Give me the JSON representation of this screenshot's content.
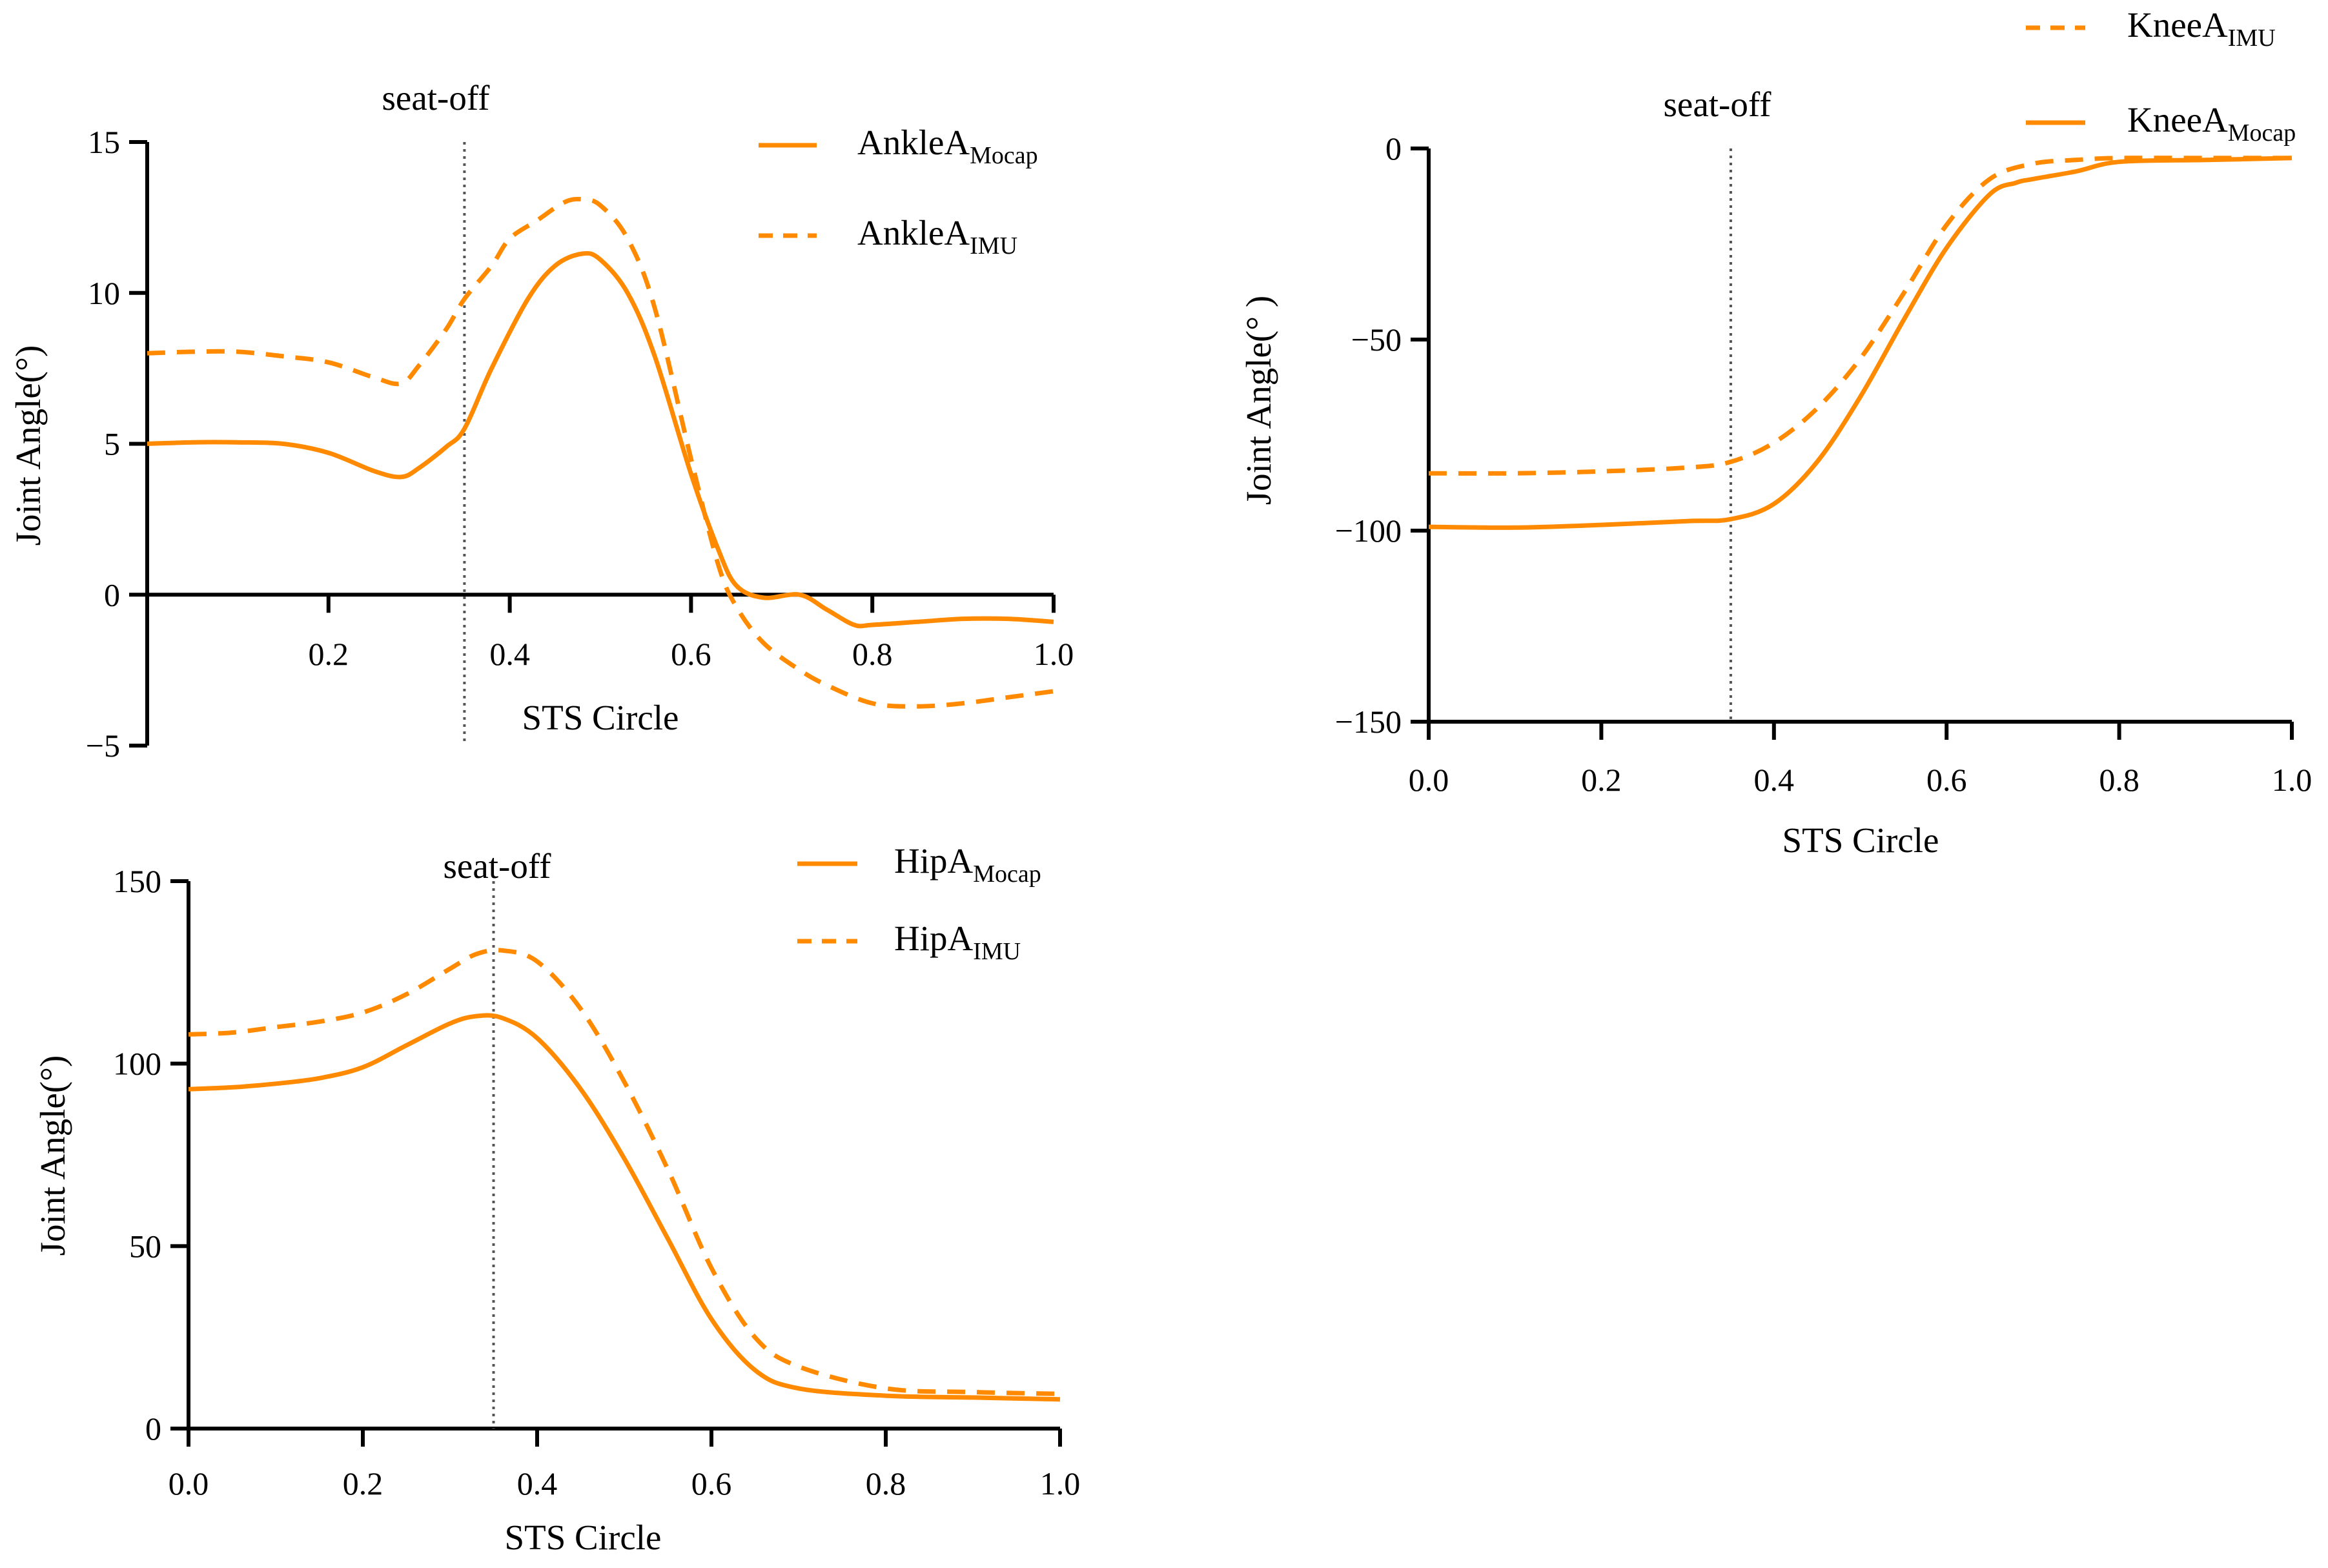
{
  "colors": {
    "series": "#ff8a00",
    "axis": "#000000",
    "marker": "#555555"
  },
  "chart_data": [
    {
      "id": "ankle",
      "type": "line",
      "xlabel": "STS Circle",
      "ylabel": "Joint Angle(°)",
      "xlim": [
        0,
        1.0
      ],
      "ylim": [
        -5,
        15
      ],
      "xticks": [
        0.2,
        0.4,
        0.6,
        0.8,
        1.0
      ],
      "xtick_labels": [
        "0.2",
        "0.4",
        "0.6",
        "0.8",
        "1.0"
      ],
      "yticks": [
        -5,
        0,
        5,
        10,
        15
      ],
      "ytick_labels": [
        "−5",
        "0",
        "5",
        "10",
        "15"
      ],
      "xaxis_at_y": 0,
      "marker": {
        "x": 0.35,
        "label": "seat-off"
      },
      "series": [
        {
          "name": "AnkleA_Mocap",
          "label_main": "AnkleA",
          "label_sub": "Mocap",
          "style": "solid",
          "x": [
            0,
            0.05,
            0.1,
            0.15,
            0.2,
            0.25,
            0.28,
            0.3,
            0.33,
            0.35,
            0.38,
            0.42,
            0.45,
            0.48,
            0.5,
            0.53,
            0.56,
            0.6,
            0.63,
            0.65,
            0.68,
            0.72,
            0.75,
            0.78,
            0.8,
            0.85,
            0.9,
            0.95,
            1.0
          ],
          "values": [
            5.0,
            5.05,
            5.05,
            5.0,
            4.7,
            4.1,
            3.9,
            4.2,
            4.9,
            5.5,
            7.5,
            9.8,
            10.9,
            11.3,
            11.1,
            10.0,
            7.9,
            4.0,
            1.5,
            0.3,
            -0.1,
            0.0,
            -0.5,
            -1.0,
            -1.0,
            -0.9,
            -0.8,
            -0.8,
            -0.9
          ]
        },
        {
          "name": "AnkleA_IMU",
          "label_main": "AnkleA",
          "label_sub": "IMU",
          "style": "dashed",
          "x": [
            0,
            0.05,
            0.1,
            0.15,
            0.2,
            0.25,
            0.28,
            0.3,
            0.33,
            0.35,
            0.38,
            0.4,
            0.43,
            0.46,
            0.48,
            0.5,
            0.53,
            0.56,
            0.6,
            0.63,
            0.65,
            0.68,
            0.72,
            0.75,
            0.8,
            0.85,
            0.9,
            0.95,
            1.0
          ],
          "values": [
            8.0,
            8.05,
            8.05,
            7.9,
            7.7,
            7.2,
            7.0,
            7.6,
            8.8,
            9.8,
            10.9,
            11.8,
            12.4,
            13.0,
            13.1,
            12.9,
            11.8,
            9.5,
            4.5,
            1.0,
            -0.4,
            -1.6,
            -2.5,
            -3.0,
            -3.6,
            -3.7,
            -3.6,
            -3.4,
            -3.2
          ]
        }
      ]
    },
    {
      "id": "knee",
      "type": "line",
      "xlabel": "STS Circle",
      "ylabel": "Joint Angle(° )",
      "xlim": [
        0,
        1.0
      ],
      "ylim": [
        -150,
        0
      ],
      "xticks": [
        0.0,
        0.2,
        0.4,
        0.6,
        0.8,
        1.0
      ],
      "xtick_labels": [
        "0.0",
        "0.2",
        "0.4",
        "0.6",
        "0.8",
        "1.0"
      ],
      "yticks": [
        -150,
        -100,
        -50,
        0
      ],
      "ytick_labels": [
        "−150",
        "−100",
        "−50",
        "0"
      ],
      "xaxis_at_y": -150,
      "marker": {
        "x": 0.35,
        "label": "seat-off"
      },
      "series": [
        {
          "name": "KneeA_IMU",
          "label_main": "KneeA",
          "label_sub": "IMU",
          "style": "dashed",
          "x": [
            0,
            0.1,
            0.2,
            0.3,
            0.35,
            0.4,
            0.45,
            0.5,
            0.55,
            0.6,
            0.65,
            0.7,
            0.75,
            0.8,
            0.9,
            1.0
          ],
          "values": [
            -85,
            -85,
            -84.5,
            -83.5,
            -82,
            -77,
            -68,
            -55,
            -38,
            -20,
            -8,
            -4,
            -3,
            -2.5,
            -2.5,
            -2.5
          ]
        },
        {
          "name": "KneeA_Mocap",
          "label_main": "KneeA",
          "label_sub": "Mocap",
          "style": "solid",
          "x": [
            0,
            0.1,
            0.2,
            0.3,
            0.35,
            0.4,
            0.45,
            0.5,
            0.55,
            0.6,
            0.65,
            0.68,
            0.7,
            0.75,
            0.8,
            0.9,
            1.0
          ],
          "values": [
            -99,
            -99.2,
            -98.5,
            -97.5,
            -97,
            -93,
            -82,
            -65,
            -45,
            -26,
            -12,
            -9,
            -8,
            -6,
            -3.5,
            -3,
            -2.5
          ]
        }
      ]
    },
    {
      "id": "hip",
      "type": "line",
      "xlabel": "STS Circle",
      "ylabel": "Joint Angle(°)",
      "xlim": [
        0,
        1.0
      ],
      "ylim": [
        0,
        150
      ],
      "xticks": [
        0.0,
        0.2,
        0.4,
        0.6,
        0.8,
        1.0
      ],
      "xtick_labels": [
        "0.0",
        "0.2",
        "0.4",
        "0.6",
        "0.8",
        "1.0"
      ],
      "yticks": [
        0,
        50,
        100,
        150
      ],
      "ytick_labels": [
        "0",
        "50",
        "100",
        "150"
      ],
      "xaxis_at_y": 0,
      "marker": {
        "x": 0.35,
        "label": "seat-off"
      },
      "series": [
        {
          "name": "HipA_Mocap",
          "label_main": "HipA",
          "label_sub": "Mocap",
          "style": "solid",
          "x": [
            0,
            0.05,
            0.1,
            0.15,
            0.2,
            0.25,
            0.3,
            0.33,
            0.36,
            0.4,
            0.45,
            0.5,
            0.55,
            0.6,
            0.65,
            0.7,
            0.8,
            0.9,
            1.0
          ],
          "values": [
            93,
            93.5,
            94.5,
            96,
            99,
            105,
            111,
            113,
            112.5,
            107,
            93,
            74,
            52,
            30,
            16,
            11,
            9,
            8.5,
            8
          ]
        },
        {
          "name": "HipA_IMU",
          "label_main": "HipA",
          "label_sub": "IMU",
          "style": "dashed",
          "x": [
            0,
            0.05,
            0.1,
            0.15,
            0.2,
            0.25,
            0.3,
            0.33,
            0.36,
            0.4,
            0.45,
            0.5,
            0.55,
            0.6,
            0.65,
            0.7,
            0.8,
            0.9,
            1.0
          ],
          "values": [
            108,
            108.5,
            110,
            111.5,
            114,
            119,
            126,
            130,
            131,
            128,
            115,
            95,
            71,
            44,
            25,
            17,
            11,
            10,
            9.5
          ]
        }
      ]
    }
  ]
}
